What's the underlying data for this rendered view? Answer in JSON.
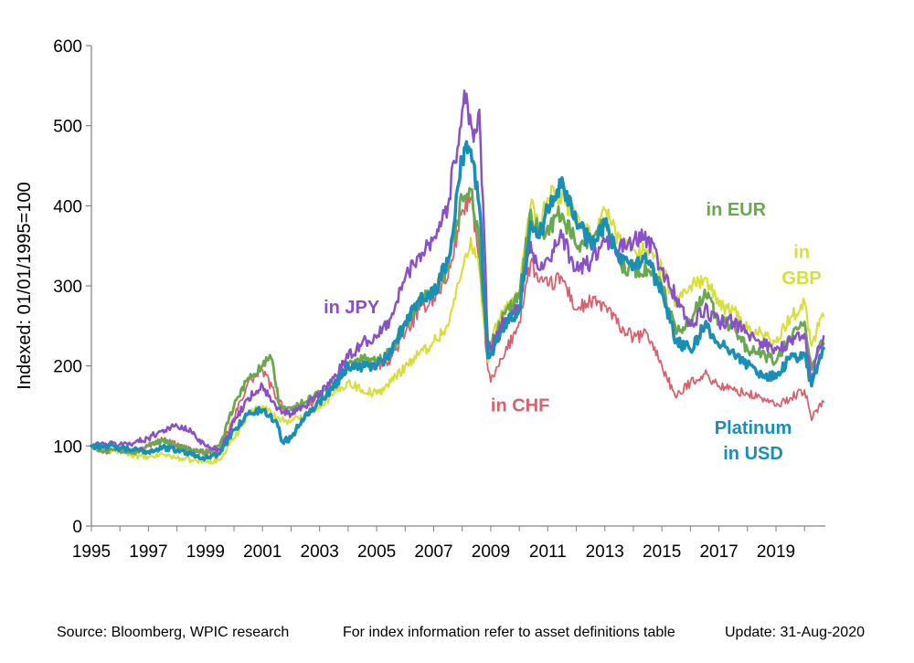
{
  "chart_data": {
    "type": "line",
    "ylabel": "Indexed: 01/01/1995=100",
    "ylim": [
      0,
      600
    ],
    "xlim": [
      1995,
      2020.67
    ],
    "yticks": [
      0,
      100,
      200,
      300,
      400,
      500,
      600
    ],
    "xticks": [
      1995,
      1997,
      1999,
      2001,
      2003,
      2005,
      2007,
      2009,
      2011,
      2013,
      2015,
      2017,
      2019
    ],
    "ytick_labels": [
      "0",
      "100",
      "200",
      "300",
      "400",
      "500",
      "600"
    ],
    "xtick_labels": [
      "1995",
      "1997",
      "1999",
      "2001",
      "2003",
      "2005",
      "2007",
      "2009",
      "2011",
      "2013",
      "2015",
      "2017",
      "2019"
    ],
    "grid": false,
    "series": [
      {
        "name": "in CHF",
        "color": "#d9606c",
        "width": 1.8,
        "points": [
          [
            1995,
            100
          ],
          [
            1995.5,
            92
          ],
          [
            1996,
            95
          ],
          [
            1996.5,
            92
          ],
          [
            1997,
            100
          ],
          [
            1997.5,
            108
          ],
          [
            1998,
            102
          ],
          [
            1998.5,
            96
          ],
          [
            1999,
            92
          ],
          [
            1999.5,
            95
          ],
          [
            2000,
            135
          ],
          [
            2000.5,
            180
          ],
          [
            2001,
            195
          ],
          [
            2001.5,
            160
          ],
          [
            2002,
            138
          ],
          [
            2002.5,
            150
          ],
          [
            2003,
            162
          ],
          [
            2003.5,
            180
          ],
          [
            2004,
            200
          ],
          [
            2004.5,
            205
          ],
          [
            2005,
            200
          ],
          [
            2005.5,
            210
          ],
          [
            2006,
            240
          ],
          [
            2006.5,
            270
          ],
          [
            2007,
            285
          ],
          [
            2007.5,
            310
          ],
          [
            2008,
            395
          ],
          [
            2008.3,
            410
          ],
          [
            2008.6,
            330
          ],
          [
            2008.9,
            195
          ],
          [
            2009,
            180
          ],
          [
            2009.5,
            215
          ],
          [
            2010,
            255
          ],
          [
            2010.4,
            330
          ],
          [
            2010.7,
            305
          ],
          [
            2011,
            300
          ],
          [
            2011.5,
            310
          ],
          [
            2012,
            270
          ],
          [
            2012.5,
            280
          ],
          [
            2013,
            275
          ],
          [
            2013.5,
            250
          ],
          [
            2014,
            235
          ],
          [
            2014.5,
            240
          ],
          [
            2015,
            200
          ],
          [
            2015.5,
            160
          ],
          [
            2016,
            180
          ],
          [
            2016.5,
            190
          ],
          [
            2017,
            175
          ],
          [
            2017.5,
            170
          ],
          [
            2018,
            165
          ],
          [
            2018.5,
            160
          ],
          [
            2019,
            150
          ],
          [
            2019.5,
            160
          ],
          [
            2020,
            170
          ],
          [
            2020.25,
            132
          ],
          [
            2020.5,
            150
          ],
          [
            2020.67,
            155
          ]
        ]
      },
      {
        "name": "in GBP",
        "color": "#d7e03a",
        "width": 2.2,
        "points": [
          [
            1995,
            100
          ],
          [
            1995.5,
            95
          ],
          [
            1996,
            93
          ],
          [
            1996.5,
            88
          ],
          [
            1997,
            85
          ],
          [
            1997.5,
            90
          ],
          [
            1998,
            85
          ],
          [
            1998.5,
            82
          ],
          [
            1999,
            80
          ],
          [
            1999.5,
            82
          ],
          [
            2000,
            110
          ],
          [
            2000.5,
            140
          ],
          [
            2001,
            150
          ],
          [
            2001.5,
            135
          ],
          [
            2002,
            130
          ],
          [
            2002.5,
            140
          ],
          [
            2003,
            150
          ],
          [
            2003.5,
            165
          ],
          [
            2004,
            180
          ],
          [
            2004.5,
            170
          ],
          [
            2005,
            165
          ],
          [
            2005.5,
            180
          ],
          [
            2006,
            200
          ],
          [
            2006.5,
            215
          ],
          [
            2007,
            230
          ],
          [
            2007.5,
            250
          ],
          [
            2008,
            320
          ],
          [
            2008.3,
            360
          ],
          [
            2008.6,
            320
          ],
          [
            2008.9,
            205
          ],
          [
            2009,
            230
          ],
          [
            2009.5,
            275
          ],
          [
            2010,
            290
          ],
          [
            2010.4,
            400
          ],
          [
            2010.7,
            370
          ],
          [
            2011,
            410
          ],
          [
            2011.5,
            415
          ],
          [
            2012,
            380
          ],
          [
            2012.5,
            360
          ],
          [
            2013,
            395
          ],
          [
            2013.5,
            360
          ],
          [
            2014,
            345
          ],
          [
            2014.5,
            345
          ],
          [
            2015,
            320
          ],
          [
            2015.5,
            280
          ],
          [
            2016,
            300
          ],
          [
            2016.5,
            310
          ],
          [
            2017,
            275
          ],
          [
            2017.5,
            270
          ],
          [
            2018,
            245
          ],
          [
            2018.5,
            240
          ],
          [
            2019,
            230
          ],
          [
            2019.5,
            260
          ],
          [
            2020,
            280
          ],
          [
            2020.25,
            225
          ],
          [
            2020.5,
            250
          ],
          [
            2020.67,
            262
          ]
        ]
      },
      {
        "name": "in EUR",
        "color": "#6aa84f",
        "width": 2.8,
        "points": [
          [
            1995,
            100
          ],
          [
            1995.5,
            93
          ],
          [
            1996,
            95
          ],
          [
            1996.5,
            92
          ],
          [
            1997,
            100
          ],
          [
            1997.5,
            108
          ],
          [
            1998,
            100
          ],
          [
            1998.5,
            94
          ],
          [
            1999,
            92
          ],
          [
            1999.5,
            100
          ],
          [
            2000,
            150
          ],
          [
            2000.5,
            185
          ],
          [
            2001,
            200
          ],
          [
            2001.3,
            210
          ],
          [
            2001.6,
            150
          ],
          [
            2002,
            145
          ],
          [
            2002.5,
            155
          ],
          [
            2003,
            165
          ],
          [
            2003.5,
            178
          ],
          [
            2004,
            200
          ],
          [
            2004.5,
            208
          ],
          [
            2005,
            205
          ],
          [
            2005.5,
            218
          ],
          [
            2006,
            250
          ],
          [
            2006.5,
            280
          ],
          [
            2007,
            290
          ],
          [
            2007.5,
            320
          ],
          [
            2008,
            410
          ],
          [
            2008.3,
            420
          ],
          [
            2008.6,
            350
          ],
          [
            2008.9,
            210
          ],
          [
            2009,
            225
          ],
          [
            2009.5,
            265
          ],
          [
            2010,
            285
          ],
          [
            2010.4,
            395
          ],
          [
            2010.7,
            365
          ],
          [
            2011,
            375
          ],
          [
            2011.5,
            390
          ],
          [
            2012,
            350
          ],
          [
            2012.5,
            360
          ],
          [
            2013,
            375
          ],
          [
            2013.5,
            330
          ],
          [
            2014,
            320
          ],
          [
            2014.5,
            320
          ],
          [
            2015,
            300
          ],
          [
            2015.5,
            240
          ],
          [
            2016,
            255
          ],
          [
            2016.5,
            295
          ],
          [
            2017,
            255
          ],
          [
            2017.5,
            250
          ],
          [
            2018,
            220
          ],
          [
            2018.5,
            215
          ],
          [
            2019,
            205
          ],
          [
            2019.5,
            235
          ],
          [
            2020,
            255
          ],
          [
            2020.25,
            195
          ],
          [
            2020.5,
            220
          ],
          [
            2020.67,
            228
          ]
        ]
      },
      {
        "name": "in JPY",
        "color": "#8a50c8",
        "width": 2.5,
        "points": [
          [
            1995,
            100
          ],
          [
            1995.5,
            103
          ],
          [
            1996,
            102
          ],
          [
            1996.5,
            104
          ],
          [
            1997,
            110
          ],
          [
            1997.5,
            120
          ],
          [
            1998,
            125
          ],
          [
            1998.5,
            118
          ],
          [
            1999,
            100
          ],
          [
            1999.5,
            95
          ],
          [
            2000,
            130
          ],
          [
            2000.5,
            160
          ],
          [
            2001,
            175
          ],
          [
            2001.5,
            145
          ],
          [
            2002,
            140
          ],
          [
            2002.5,
            150
          ],
          [
            2003,
            165
          ],
          [
            2003.5,
            185
          ],
          [
            2004,
            210
          ],
          [
            2004.5,
            230
          ],
          [
            2005,
            235
          ],
          [
            2005.5,
            260
          ],
          [
            2006,
            310
          ],
          [
            2006.5,
            340
          ],
          [
            2007,
            360
          ],
          [
            2007.5,
            400
          ],
          [
            2008,
            520
          ],
          [
            2008.15,
            540
          ],
          [
            2008.4,
            480
          ],
          [
            2008.6,
            520
          ],
          [
            2008.9,
            230
          ],
          [
            2009,
            220
          ],
          [
            2009.5,
            260
          ],
          [
            2010,
            270
          ],
          [
            2010.4,
            355
          ],
          [
            2010.7,
            320
          ],
          [
            2011,
            335
          ],
          [
            2011.5,
            360
          ],
          [
            2012,
            320
          ],
          [
            2012.5,
            330
          ],
          [
            2013,
            355
          ],
          [
            2013.5,
            345
          ],
          [
            2014,
            355
          ],
          [
            2014.5,
            360
          ],
          [
            2015,
            320
          ],
          [
            2015.5,
            285
          ],
          [
            2016,
            250
          ],
          [
            2016.5,
            270
          ],
          [
            2017,
            255
          ],
          [
            2017.5,
            255
          ],
          [
            2018,
            240
          ],
          [
            2018.5,
            230
          ],
          [
            2019,
            220
          ],
          [
            2019.5,
            230
          ],
          [
            2020,
            240
          ],
          [
            2020.25,
            180
          ],
          [
            2020.5,
            225
          ],
          [
            2020.67,
            237
          ]
        ]
      },
      {
        "name": "Platinum in USD",
        "color": "#1a8fb5",
        "width": 3.5,
        "points": [
          [
            1995,
            100
          ],
          [
            1995.5,
            100
          ],
          [
            1996,
            97
          ],
          [
            1996.5,
            95
          ],
          [
            1997,
            93
          ],
          [
            1997.5,
            98
          ],
          [
            1998,
            95
          ],
          [
            1998.5,
            90
          ],
          [
            1999,
            85
          ],
          [
            1999.5,
            90
          ],
          [
            2000,
            120
          ],
          [
            2000.5,
            140
          ],
          [
            2001,
            145
          ],
          [
            2001.5,
            130
          ],
          [
            2001.7,
            105
          ],
          [
            2002,
            110
          ],
          [
            2002.5,
            140
          ],
          [
            2003,
            155
          ],
          [
            2003.5,
            175
          ],
          [
            2004,
            200
          ],
          [
            2004.5,
            200
          ],
          [
            2005,
            200
          ],
          [
            2005.5,
            215
          ],
          [
            2006,
            255
          ],
          [
            2006.5,
            285
          ],
          [
            2007,
            290
          ],
          [
            2007.5,
            330
          ],
          [
            2008,
            460
          ],
          [
            2008.15,
            480
          ],
          [
            2008.3,
            470
          ],
          [
            2008.6,
            400
          ],
          [
            2008.9,
            210
          ],
          [
            2009,
            215
          ],
          [
            2009.5,
            255
          ],
          [
            2010,
            270
          ],
          [
            2010.4,
            380
          ],
          [
            2010.7,
            360
          ],
          [
            2011,
            400
          ],
          [
            2011.5,
            435
          ],
          [
            2012,
            380
          ],
          [
            2012.5,
            355
          ],
          [
            2013,
            380
          ],
          [
            2013.5,
            330
          ],
          [
            2014,
            325
          ],
          [
            2014.5,
            330
          ],
          [
            2015,
            290
          ],
          [
            2015.5,
            230
          ],
          [
            2016,
            220
          ],
          [
            2016.5,
            250
          ],
          [
            2017,
            225
          ],
          [
            2017.5,
            220
          ],
          [
            2018,
            200
          ],
          [
            2018.5,
            190
          ],
          [
            2019,
            185
          ],
          [
            2019.5,
            210
          ],
          [
            2020,
            215
          ],
          [
            2020.25,
            175
          ],
          [
            2020.5,
            205
          ],
          [
            2020.67,
            222
          ]
        ]
      }
    ],
    "annotations": [
      {
        "text": "in EUR",
        "x": 2017.6,
        "y": 388,
        "color": "#6aa84f",
        "anchor": "middle"
      },
      {
        "text": "in",
        "x": 2019.9,
        "y": 335,
        "color": "#d7e03a",
        "anchor": "middle"
      },
      {
        "text": "GBP",
        "x": 2019.9,
        "y": 302,
        "color": "#d7e03a",
        "anchor": "middle"
      },
      {
        "text": "in JPY",
        "x": 2005.1,
        "y": 266,
        "color": "#8a50c8",
        "anchor": "end"
      },
      {
        "text": "in CHF",
        "x": 2009.0,
        "y": 143,
        "color": "#d9606c",
        "anchor": "start"
      },
      {
        "text": "Platinum",
        "x": 2018.2,
        "y": 115,
        "color": "#1a8fb5",
        "anchor": "middle"
      },
      {
        "text": "in USD",
        "x": 2018.2,
        "y": 83,
        "color": "#1a8fb5",
        "anchor": "middle"
      }
    ]
  },
  "footer": {
    "source": "Source: Bloomberg, WPIC research",
    "note": "For index information refer to asset definitions table",
    "update": "Update: 31-Aug-2020"
  }
}
